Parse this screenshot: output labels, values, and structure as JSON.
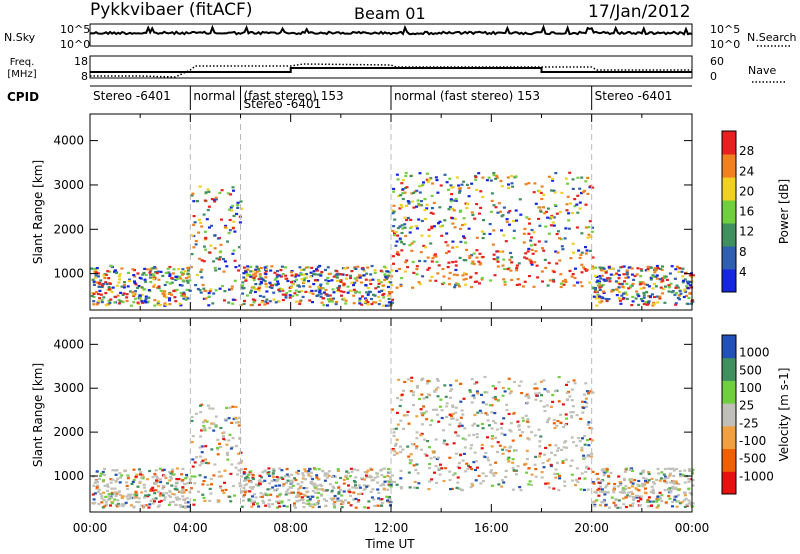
{
  "header": {
    "title": "Pykkvibaer (fitACF)",
    "beam": "Beam 01",
    "date": "17/Jan/2012"
  },
  "strip_labels": {
    "nsky": "N.Sky",
    "nsearch": "N.Search",
    "freq_line1": "Freq.",
    "freq_line2": "[MHz]",
    "nave": "Nave",
    "cpid": "CPID",
    "noise_ticks": [
      "10^5",
      "10^0"
    ],
    "freq_ticks": [
      "18",
      "8"
    ],
    "nave_ticks": [
      "60",
      "0"
    ]
  },
  "cpid_segments": [
    {
      "start": 0.0,
      "end": 4.0,
      "label": "Stereo -6401"
    },
    {
      "start": 4.0,
      "end": 6.0,
      "label": "normal"
    },
    {
      "start": 6.0,
      "end": 12.0,
      "label": "(fast stereo) 153",
      "sub": "Stereo -6401"
    },
    {
      "start": 12.0,
      "end": 20.0,
      "label": "normal (fast stereo) 153"
    },
    {
      "start": 20.0,
      "end": 24.0,
      "label": "Stereo -6401"
    }
  ],
  "axes": {
    "xlabel": "Time UT",
    "x_ticks": [
      "00:00",
      "04:00",
      "08:00",
      "12:00",
      "16:00",
      "20:00",
      "00:00"
    ],
    "ylabel": "Slant Range [km]",
    "y_ticks": [
      "1000",
      "2000",
      "3000",
      "4000"
    ]
  },
  "chart_data": [
    {
      "type": "heatmap",
      "panel": "power",
      "colorbar_label": "Power [dB]",
      "colorbar_ticks": [
        "28",
        "24",
        "20",
        "16",
        "12",
        "8",
        "4"
      ],
      "colors": [
        "#1525e0",
        "#2f5fb0",
        "#3f8f5f",
        "#6fcf3f",
        "#f0d020",
        "#f08020",
        "#e82020"
      ],
      "xlim": [
        0,
        24
      ],
      "ylim": [
        180,
        4600
      ],
      "scatter_regions": [
        {
          "t0": 0.0,
          "t1": 4.0,
          "r0": 300,
          "r1": 1200
        },
        {
          "t0": 4.0,
          "t1": 6.0,
          "r0": 300,
          "r1": 3000
        },
        {
          "t0": 6.0,
          "t1": 12.0,
          "r0": 300,
          "r1": 1200
        },
        {
          "t0": 12.0,
          "t1": 20.0,
          "r0": 700,
          "r1": 3300
        },
        {
          "t0": 20.0,
          "t1": 24.0,
          "r0": 300,
          "r1": 1200
        }
      ]
    },
    {
      "type": "heatmap",
      "panel": "velocity",
      "colorbar_label": "Velocity [m s-1]",
      "colorbar_ticks": [
        "1000",
        "500",
        "100",
        "25",
        "-25",
        "-100",
        "-500",
        "-1000"
      ],
      "colors": [
        "#e81010",
        "#f06000",
        "#f0a040",
        "#c0c0b8",
        "#6fcf3f",
        "#3f8f5f",
        "#2050b8"
      ],
      "xlim": [
        0,
        24
      ],
      "ylim": [
        180,
        4600
      ],
      "scatter_regions": [
        {
          "t0": 0.0,
          "t1": 4.0,
          "r0": 300,
          "r1": 1200
        },
        {
          "t0": 4.0,
          "t1": 6.0,
          "r0": 300,
          "r1": 2700
        },
        {
          "t0": 6.0,
          "t1": 12.0,
          "r0": 300,
          "r1": 1200
        },
        {
          "t0": 12.0,
          "t1": 20.0,
          "r0": 700,
          "r1": 3300
        },
        {
          "t0": 20.0,
          "t1": 24.0,
          "r0": 300,
          "r1": 1200
        }
      ]
    }
  ]
}
